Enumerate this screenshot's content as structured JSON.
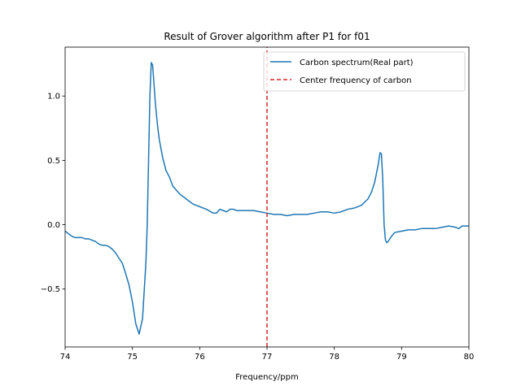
{
  "chart_data": {
    "type": "line",
    "title": "Result of Grover algorithm after P1 for f01",
    "xlabel": "Frequency/ppm",
    "ylabel": "",
    "xlim": [
      74,
      80
    ],
    "ylim": [
      -0.95,
      1.38
    ],
    "xticks": [
      74,
      75,
      76,
      77,
      78,
      79,
      80
    ],
    "xtick_labels": [
      "74",
      "75",
      "76",
      "77",
      "78",
      "79",
      "80"
    ],
    "yticks": [
      -0.5,
      0.0,
      0.5,
      1.0
    ],
    "ytick_labels": [
      "−0.5",
      "0.0",
      "0.5",
      "1.0"
    ],
    "grid": false,
    "legend_position": "top-right",
    "series": [
      {
        "name": "Carbon spectrum(Real part)",
        "color": "#1f77b4",
        "style": "solid",
        "x": [
          74.0,
          74.05,
          74.1,
          74.15,
          74.2,
          74.25,
          74.3,
          74.35,
          74.4,
          74.45,
          74.5,
          74.55,
          74.6,
          74.65,
          74.7,
          74.75,
          74.8,
          74.85,
          74.9,
          74.95,
          75.0,
          75.05,
          75.1,
          75.15,
          75.2,
          75.22,
          75.24,
          75.26,
          75.28,
          75.3,
          75.32,
          75.34,
          75.36,
          75.38,
          75.4,
          75.45,
          75.5,
          75.55,
          75.6,
          75.65,
          75.7,
          75.8,
          75.9,
          76.0,
          76.1,
          76.2,
          76.25,
          76.3,
          76.35,
          76.4,
          76.45,
          76.5,
          76.55,
          76.6,
          76.7,
          76.8,
          76.9,
          77.0,
          77.1,
          77.2,
          77.3,
          77.4,
          77.5,
          77.6,
          77.7,
          77.8,
          77.9,
          78.0,
          78.1,
          78.2,
          78.3,
          78.4,
          78.5,
          78.55,
          78.6,
          78.65,
          78.68,
          78.7,
          78.72,
          78.74,
          78.76,
          78.78,
          78.8,
          78.85,
          78.9,
          79.0,
          79.1,
          79.2,
          79.3,
          79.4,
          79.5,
          79.6,
          79.7,
          79.8,
          79.85,
          79.9,
          80.0
        ],
        "y": [
          -0.05,
          -0.07,
          -0.09,
          -0.1,
          -0.1,
          -0.1,
          -0.11,
          -0.11,
          -0.12,
          -0.13,
          -0.15,
          -0.16,
          -0.16,
          -0.17,
          -0.19,
          -0.22,
          -0.26,
          -0.3,
          -0.38,
          -0.47,
          -0.6,
          -0.77,
          -0.85,
          -0.73,
          -0.3,
          0.0,
          0.5,
          1.0,
          1.26,
          1.24,
          1.1,
          0.95,
          0.84,
          0.74,
          0.66,
          0.52,
          0.42,
          0.37,
          0.3,
          0.27,
          0.24,
          0.2,
          0.16,
          0.14,
          0.12,
          0.09,
          0.09,
          0.12,
          0.11,
          0.1,
          0.12,
          0.12,
          0.11,
          0.11,
          0.11,
          0.11,
          0.1,
          0.09,
          0.08,
          0.08,
          0.07,
          0.08,
          0.08,
          0.08,
          0.09,
          0.1,
          0.1,
          0.09,
          0.1,
          0.12,
          0.13,
          0.15,
          0.2,
          0.25,
          0.33,
          0.46,
          0.56,
          0.55,
          0.35,
          0.0,
          -0.12,
          -0.14,
          -0.13,
          -0.09,
          -0.06,
          -0.05,
          -0.04,
          -0.04,
          -0.03,
          -0.03,
          -0.03,
          -0.02,
          -0.01,
          -0.02,
          -0.03,
          -0.01,
          -0.01
        ]
      },
      {
        "name": "Center frequency of carbon",
        "color": "#d62728",
        "style": "dashed",
        "x": [
          77.0,
          77.0
        ],
        "y": [
          -0.95,
          1.38
        ]
      }
    ]
  }
}
